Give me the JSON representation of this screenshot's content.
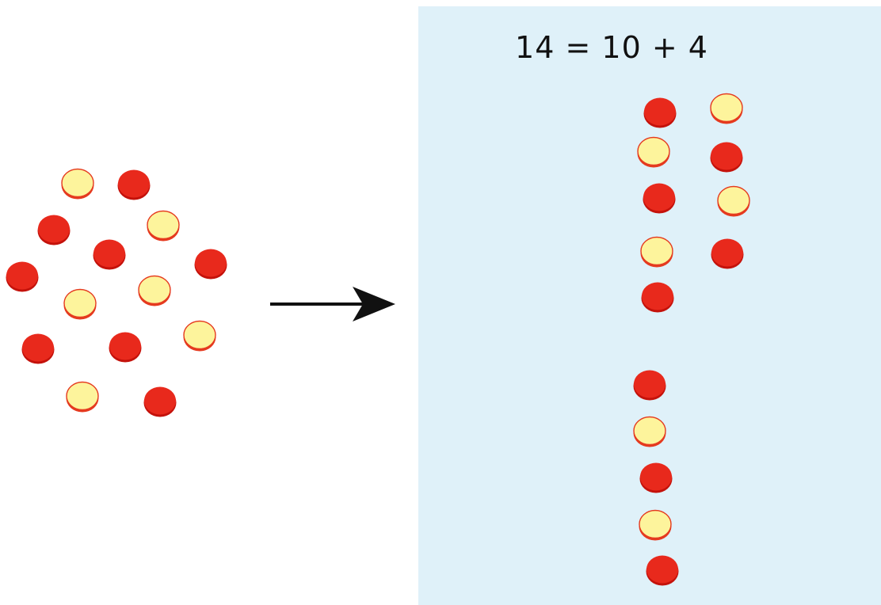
{
  "equation": "14 = 10 + 4",
  "colors": {
    "red_fill": "#e8291c",
    "red_rim": "#c4120b",
    "yellow_fill": "#fdf49c",
    "yellow_rim": "#e53a1f",
    "panel": "#dff1f9",
    "arrow": "#111111"
  },
  "scattered_counters": [
    "yellow",
    "red",
    "red",
    "yellow",
    "red",
    "red",
    "red",
    "yellow",
    "yellow",
    "yellow",
    "red",
    "red",
    "yellow",
    "red"
  ],
  "tens_column": [
    "red",
    "yellow",
    "red",
    "yellow",
    "red",
    "red",
    "yellow",
    "red",
    "yellow",
    "red"
  ],
  "ones_column": [
    "yellow",
    "red",
    "yellow",
    "red"
  ],
  "counts": {
    "total": 14,
    "tens": 10,
    "ones": 4
  }
}
